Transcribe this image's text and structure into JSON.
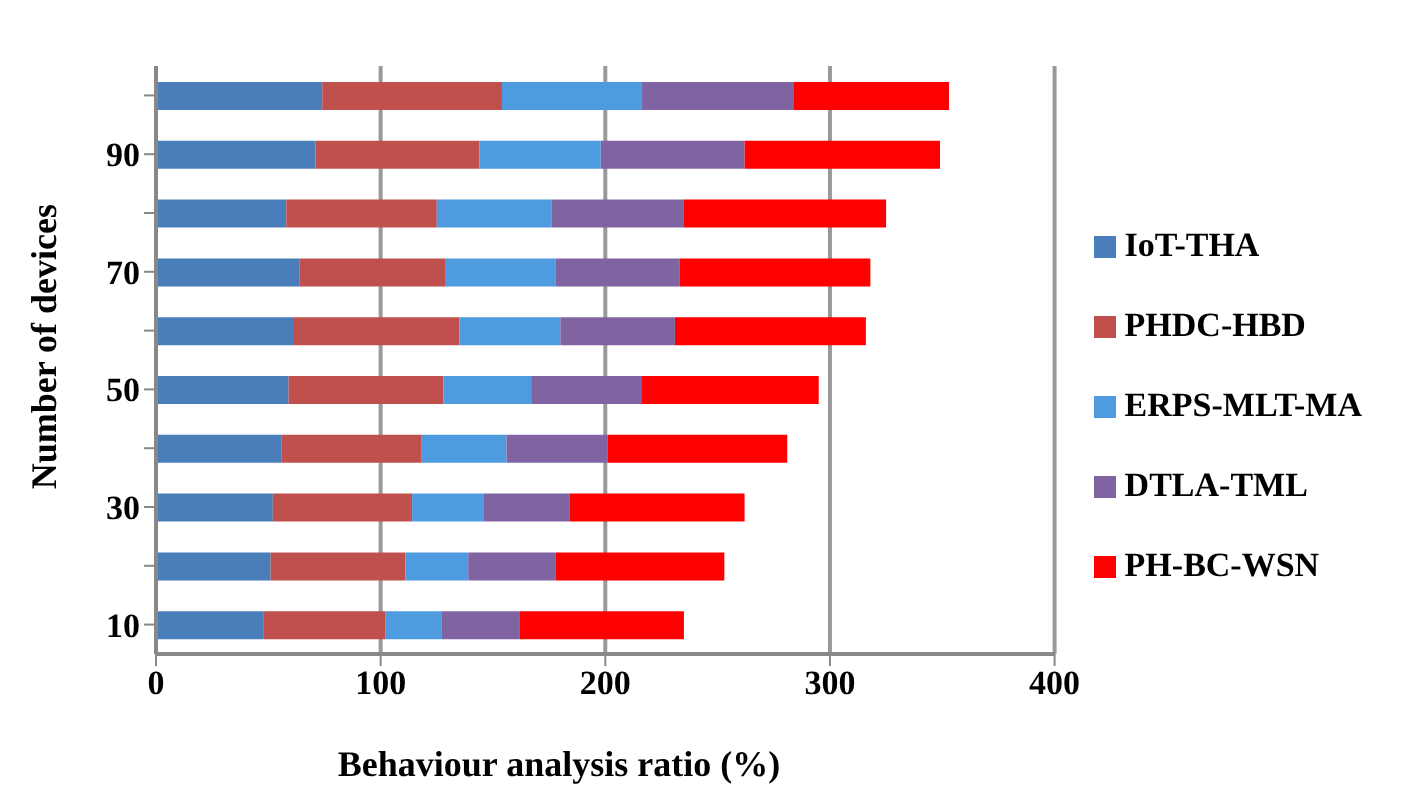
{
  "chart_data": {
    "type": "bar",
    "orientation": "horizontal",
    "stacked": true,
    "xlabel": "Behaviour analysis ratio (%)",
    "ylabel": "Number of devices",
    "categories": [
      null,
      "90",
      null,
      "70",
      null,
      "50",
      null,
      "30",
      null,
      "10"
    ],
    "series": [
      {
        "name": "IoT-THA",
        "color": "#4a7ebb",
        "values": [
          74,
          71,
          58,
          64,
          61,
          59,
          56,
          52,
          51,
          48
        ]
      },
      {
        "name": "PHDC-HBD",
        "color": "#c0504d",
        "values": [
          80,
          73,
          67,
          65,
          74,
          69,
          62,
          62,
          60,
          54
        ]
      },
      {
        "name": "ERPS-MLT-MA",
        "color": "#4f9be0",
        "values": [
          62,
          54,
          51,
          49,
          45,
          39,
          38,
          32,
          28,
          25
        ]
      },
      {
        "name": "DTLA-TML",
        "color": "#8064a2",
        "values": [
          68,
          64,
          59,
          55,
          51,
          49,
          45,
          38,
          39,
          35
        ]
      },
      {
        "name": "PH-BC-WSN",
        "color": "#ff0000",
        "values": [
          69,
          87,
          90,
          85,
          85,
          79,
          80,
          78,
          75,
          73
        ]
      }
    ],
    "xlim": [
      0,
      400
    ],
    "xticks": [
      0,
      100,
      200,
      300,
      400
    ],
    "grid": "x",
    "legend": "right"
  }
}
